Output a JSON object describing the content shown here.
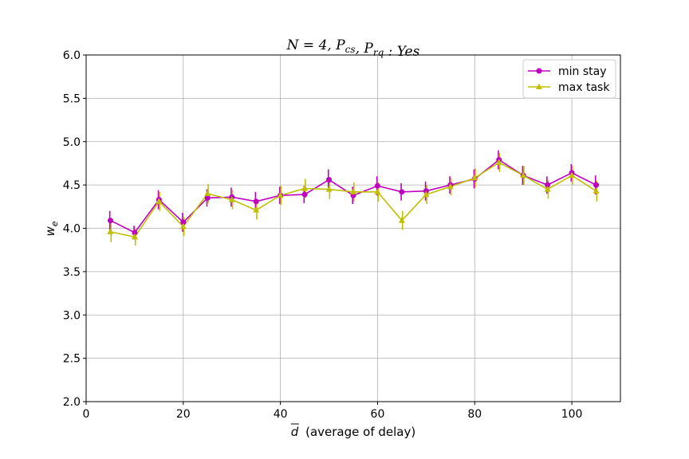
{
  "chart_data": {
    "type": "line",
    "title": "N = 4, P_cs, P_rq : Yes",
    "xlabel": "(average of delay)",
    "xlabel_symbol": "d",
    "ylabel_symbol": "w",
    "ylabel_subscript": "e",
    "xlim": [
      0,
      110
    ],
    "ylim": [
      2.0,
      6.0
    ],
    "xticks": [
      0,
      20,
      40,
      60,
      80,
      100
    ],
    "yticks": [
      2.0,
      2.5,
      3.0,
      3.5,
      4.0,
      4.5,
      5.0,
      5.5,
      6.0
    ],
    "grid": true,
    "legend_position": "top-right",
    "x": [
      5,
      10,
      15,
      20,
      25,
      30,
      35,
      40,
      45,
      50,
      55,
      60,
      65,
      70,
      75,
      80,
      85,
      90,
      95,
      100,
      105
    ],
    "series": [
      {
        "name": "min stay",
        "color": "#bf00bf",
        "marker": "circle",
        "values": [
          4.09,
          3.95,
          4.33,
          4.07,
          4.35,
          4.36,
          4.31,
          4.38,
          4.39,
          4.56,
          4.38,
          4.49,
          4.42,
          4.43,
          4.5,
          4.57,
          4.79,
          4.61,
          4.5,
          4.64,
          4.5
        ],
        "errors": [
          0.11,
          0.08,
          0.11,
          0.11,
          0.1,
          0.11,
          0.11,
          0.1,
          0.1,
          0.12,
          0.1,
          0.11,
          0.1,
          0.11,
          0.1,
          0.11,
          0.11,
          0.11,
          0.1,
          0.1,
          0.11
        ]
      },
      {
        "name": "max task",
        "color": "#bfbf00",
        "marker": "triangle",
        "values": [
          3.96,
          3.9,
          4.31,
          4.02,
          4.4,
          4.33,
          4.21,
          4.38,
          4.46,
          4.45,
          4.42,
          4.42,
          4.09,
          4.39,
          4.48,
          4.58,
          4.76,
          4.61,
          4.45,
          4.61,
          4.43
        ],
        "errors": [
          0.12,
          0.1,
          0.11,
          0.11,
          0.11,
          0.11,
          0.11,
          0.11,
          0.11,
          0.11,
          0.11,
          0.11,
          0.11,
          0.11,
          0.1,
          0.11,
          0.11,
          0.11,
          0.11,
          0.11,
          0.12
        ]
      }
    ]
  }
}
